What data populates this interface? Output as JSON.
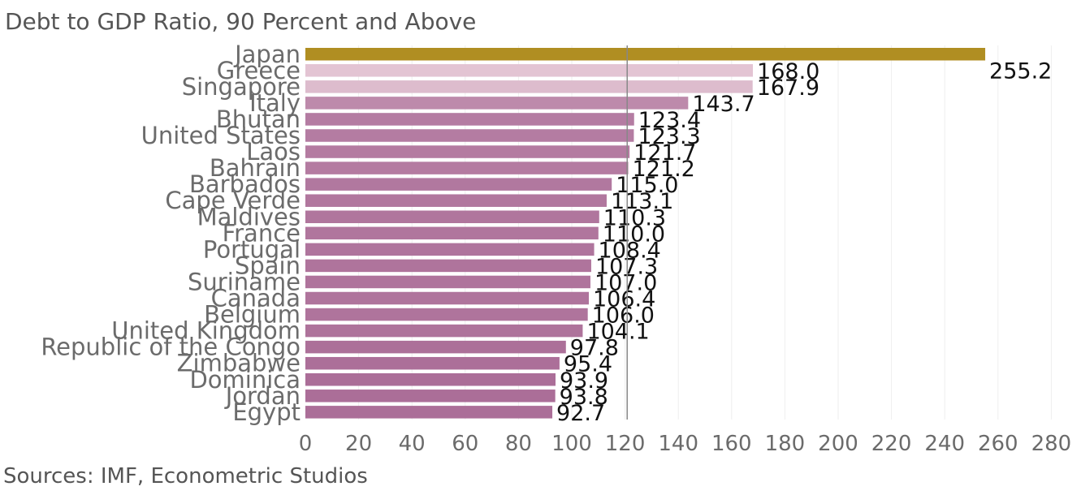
{
  "chart_data": {
    "type": "bar",
    "orientation": "horizontal",
    "title": "Debt to GDP Ratio, 90 Percent and Above",
    "source": "Sources: IMF, Econometric Studios",
    "xlabel": "",
    "ylabel": "",
    "xlim": [
      0,
      290
    ],
    "xticks": [
      0,
      20,
      40,
      60,
      80,
      100,
      120,
      140,
      160,
      180,
      200,
      220,
      240,
      260,
      280
    ],
    "grid": true,
    "reference_line": 120.8,
    "categories": [
      "Japan",
      "Greece",
      "Singapore",
      "Italy",
      "Bhutan",
      "United States",
      "Laos",
      "Bahrain",
      "Barbados",
      "Cape Verde",
      "Maldives",
      "France",
      "Portugal",
      "Spain",
      "Suriname",
      "Canada",
      "Belgium",
      "United Kingdom",
      "Republic of the Congo",
      "Zimbabwe",
      "Dominica",
      "Jordan",
      "Egypt"
    ],
    "values": [
      255.2,
      168.0,
      167.9,
      143.7,
      123.4,
      123.3,
      121.7,
      121.2,
      115.0,
      113.1,
      110.3,
      110.0,
      108.4,
      107.3,
      107.0,
      106.4,
      106.0,
      104.1,
      97.8,
      95.4,
      93.9,
      93.8,
      92.7
    ],
    "value_labels": [
      "255.2",
      "168.0",
      "167.9",
      "143.7",
      "123.4",
      "123.3",
      "121.7",
      "121.2",
      "115.0",
      "113.1",
      "110.3",
      "110.0",
      "108.4",
      "107.3",
      "107.0",
      "106.4",
      "106.0",
      "104.1",
      "97.8",
      "95.4",
      "93.9",
      "93.8",
      "92.7"
    ],
    "colors": {
      "highlight": "#b08e22",
      "low": "#e3c4d3",
      "high": "#ab6e98",
      "reference_line": "#888888",
      "grid": "#eeeeee"
    }
  }
}
